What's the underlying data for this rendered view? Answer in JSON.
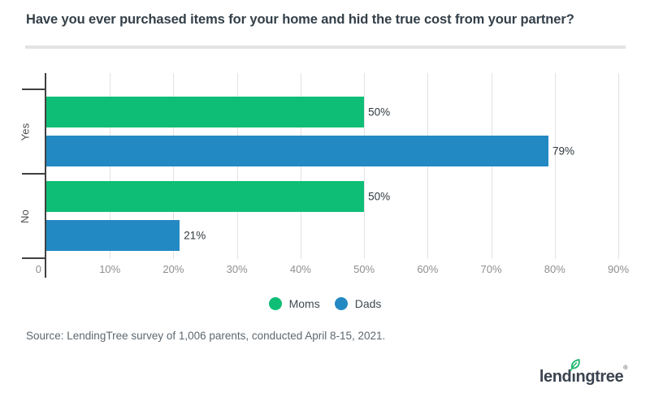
{
  "title": "Have you ever purchased items for your home and hid the true cost from your partner?",
  "chart_data": {
    "type": "bar",
    "orientation": "horizontal",
    "title": "Have you ever purchased items for your home and hid the true cost from your partner?",
    "categories": [
      "Yes",
      "No"
    ],
    "series": [
      {
        "name": "Moms",
        "color": "#0ebe76",
        "values": [
          50,
          50
        ]
      },
      {
        "name": "Dads",
        "color": "#2389c3",
        "values": [
          79,
          21
        ]
      }
    ],
    "value_label_suffix": "%",
    "xlabel": "",
    "ylabel": "",
    "xlim": [
      0,
      90
    ],
    "x_ticks": [
      {
        "value": 0,
        "label": "0"
      },
      {
        "value": 10,
        "label": "10%"
      },
      {
        "value": 20,
        "label": "20%"
      },
      {
        "value": 30,
        "label": "30%"
      },
      {
        "value": 40,
        "label": "40%"
      },
      {
        "value": 50,
        "label": "50%"
      },
      {
        "value": 60,
        "label": "60%"
      },
      {
        "value": 70,
        "label": "70%"
      },
      {
        "value": 80,
        "label": "80%"
      },
      {
        "value": 90,
        "label": "90%"
      }
    ],
    "grid": true,
    "legend_position": "bottom"
  },
  "legend": {
    "items": [
      {
        "label": "Moms",
        "color": "#0ebe76"
      },
      {
        "label": "Dads",
        "color": "#2389c3"
      }
    ]
  },
  "source": "Source: LendingTree survey of 1,006 parents, conducted April 8-15, 2021.",
  "logo": {
    "part1": "lend",
    "part2": "i",
    "part3": "ngtree",
    "reg": "®",
    "leaf_color": "#1db56c",
    "text_color": "#3b4450"
  },
  "colors": {
    "moms_green": "#0ebe76",
    "dads_blue": "#2389c3",
    "axis": "#404040",
    "gridline": "#e2e2e2",
    "title_text": "#333f48",
    "tick_label": "#8e8e8e",
    "divider": "#e3e3e3"
  }
}
